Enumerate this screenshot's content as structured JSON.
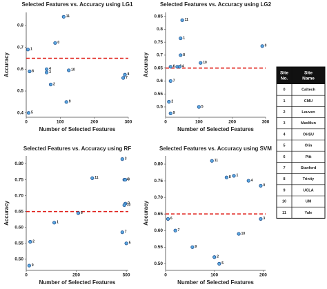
{
  "chart_data": [
    {
      "type": "scatter",
      "title": "Selected Features vs. Accuracy using LG1",
      "x_label": "Number of Selected Features",
      "y_label": "Accuracy",
      "point_labels": [
        "0",
        "1",
        "2",
        "3",
        "4",
        "5",
        "6",
        "7",
        "8",
        "9",
        "10",
        "11"
      ],
      "x": [
        85,
        5,
        72,
        60,
        60,
        7,
        10,
        285,
        290,
        118,
        125,
        110
      ],
      "values": [
        0.72,
        0.69,
        0.53,
        0.585,
        0.6,
        0.4,
        0.59,
        0.56,
        0.575,
        0.45,
        0.595,
        0.84
      ],
      "xlim": [
        0,
        300
      ],
      "xticks": [
        0,
        100,
        200,
        300
      ],
      "ylim": [
        0.38,
        0.86
      ],
      "yticks": [
        0.4,
        0.5,
        0.6,
        0.7,
        0.8
      ],
      "reference_line": 0.65,
      "color": "#5aa7e0",
      "edge_color": "#1f4e8c",
      "reference_color": "#e0201b"
    },
    {
      "type": "scatter",
      "title": "Selected Features vs. Accuracy using LG2",
      "x_label": "Number of Selected Features",
      "y_label": "Accuracy",
      "point_labels": [
        "0",
        "1",
        "2",
        "3",
        "4",
        "5",
        "6",
        "7",
        "8",
        "9",
        "10",
        "11"
      ],
      "x": [
        290,
        45,
        10,
        35,
        42,
        100,
        15,
        15,
        45,
        15,
        105,
        50
      ],
      "values": [
        0.735,
        0.765,
        0.52,
        0.655,
        0.655,
        0.5,
        0.655,
        0.6,
        0.7,
        0.475,
        0.67,
        0.835
      ],
      "xlim": [
        0,
        300
      ],
      "xticks": [
        0,
        100,
        200,
        300
      ],
      "ylim": [
        0.46,
        0.865
      ],
      "yticks": [
        0.5,
        0.55,
        0.6,
        0.65,
        0.7,
        0.75,
        0.8,
        0.85
      ],
      "reference_line": 0.65,
      "color": "#5aa7e0",
      "edge_color": "#1f4e8c",
      "reference_color": "#e0201b"
    },
    {
      "type": "scatter",
      "title": "Selected Features vs. Accuracy using RF",
      "x_label": "Number of Selected Features",
      "y_label": "Accuracy",
      "point_labels": [
        "0",
        "1",
        "2",
        "3",
        "4",
        "5",
        "6",
        "7",
        "8",
        "9",
        "10",
        "11"
      ],
      "x": [
        495,
        140,
        20,
        480,
        490,
        500,
        260,
        480,
        495,
        15,
        490,
        330
      ],
      "values": [
        0.675,
        0.615,
        0.555,
        0.815,
        0.75,
        0.55,
        0.645,
        0.585,
        0.75,
        0.48,
        0.67,
        0.755
      ],
      "xlim": [
        0,
        510
      ],
      "xticks": [
        0,
        250,
        500
      ],
      "ylim": [
        0.465,
        0.825
      ],
      "yticks": [
        {
          "value": 0.5,
          "label": "0.50"
        },
        0.55,
        {
          "value": 0.6,
          "label": "0.60"
        },
        0.65,
        {
          "value": 0.7,
          "label": "0.70"
        },
        0.75,
        {
          "value": 0.8,
          "label": "0.80"
        }
      ],
      "reference_line": 0.65,
      "color": "#5aa7e0",
      "edge_color": "#1f4e8c",
      "reference_color": "#e0201b"
    },
    {
      "type": "scatter",
      "title": "Selected Features vs. Accuracy using SVM",
      "x_label": "Number of Selected Features",
      "y_label": "Accuracy",
      "point_labels": [
        "0",
        "1",
        "2",
        "3",
        "4",
        "5",
        "6",
        "7",
        "8",
        "9",
        "10",
        "11"
      ],
      "x": [
        195,
        140,
        100,
        195,
        170,
        110,
        5,
        20,
        125,
        55,
        150,
        95
      ],
      "values": [
        0.735,
        0.765,
        0.52,
        0.635,
        0.75,
        0.5,
        0.635,
        0.6,
        0.76,
        0.55,
        0.59,
        0.81
      ],
      "xlim": [
        0,
        205
      ],
      "xticks": [
        0,
        100,
        200
      ],
      "ylim": [
        0.48,
        0.825
      ],
      "yticks": [
        {
          "value": 0.5,
          "label": "0.50"
        },
        0.55,
        {
          "value": 0.6,
          "label": "0.60"
        },
        0.65,
        {
          "value": 0.7,
          "label": "0.70"
        },
        0.75,
        {
          "value": 0.8,
          "label": "0.80"
        }
      ],
      "reference_line": 0.65,
      "color": "#5aa7e0",
      "edge_color": "#1f4e8c",
      "reference_color": "#e0201b"
    }
  ],
  "table": {
    "header": [
      "Site No.",
      "Site Name"
    ],
    "rows": [
      [
        "0",
        "Caltech"
      ],
      [
        "1",
        "CMU"
      ],
      [
        "2",
        "Leuven"
      ],
      [
        "3",
        "MaxMun"
      ],
      [
        "4",
        "OHSU"
      ],
      [
        "5",
        "Olin"
      ],
      [
        "6",
        "Pitt"
      ],
      [
        "7",
        "Stanford"
      ],
      [
        "8",
        "Trinity"
      ],
      [
        "9",
        "UCLA"
      ],
      [
        "10",
        "UM"
      ],
      [
        "11",
        "Yale"
      ]
    ]
  }
}
